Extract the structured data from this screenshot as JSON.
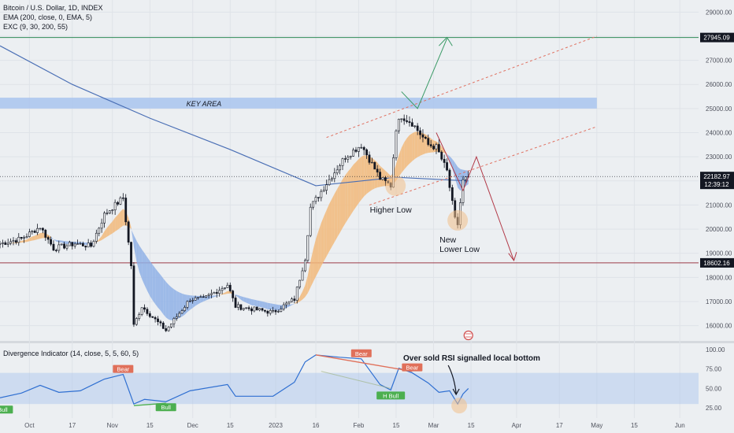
{
  "header": {
    "symbol": "Bitcoin / U.S. Dollar, 1D, INDEX",
    "ema_study": "EMA (200, close, 0, EMA, 5)",
    "exc_study": "EXC (9, 30, 200, 55)"
  },
  "oscillator": {
    "title": "Divergence Indicator (14, close, 5, 5, 60, 5)"
  },
  "colors": {
    "background": "#eceff2",
    "bull_candle": "#ffffff",
    "bear_candle": "#131722",
    "ema200": "#4a6fb5",
    "band_bull": "#f2b97a",
    "band_bear": "#8fb0e6",
    "key_area": "#a9c4ee",
    "resistance_line": "#2e8b57",
    "support_line": "#9b3b4a",
    "rsi_line": "#2f6fd1",
    "bear_label": "#e0705a",
    "bull_label": "#4caf50",
    "annotation_red": "#e07060",
    "annotation_dark": "#b23a48",
    "annotation_green": "#3a9a66",
    "highlight_circle": "#f2c08a"
  },
  "chart_data": [
    {
      "type": "candlestick",
      "title": "Bitcoin / U.S. Dollar, 1D, INDEX",
      "y_axis": {
        "ticks": [
          16000,
          17000,
          18000,
          19000,
          20000,
          21000,
          22000,
          23000,
          24000,
          25000,
          26000,
          27000,
          28000,
          29000
        ],
        "tick_labels": [
          "16000.00",
          "17000.00",
          "18000.00",
          "19000.00",
          "20000.00",
          "21000.00",
          "22000.00",
          "23000.00",
          "24000.00",
          "25000.00",
          "26000.00",
          "27000.00",
          "28000.00",
          "29000.00"
        ],
        "range": [
          15400,
          29500
        ]
      },
      "x_axis": {
        "tick_labels": [
          "Oct",
          "17",
          "Nov",
          "15",
          "Dec",
          "15",
          "2023",
          "16",
          "Feb",
          "15",
          "Mar",
          "15",
          "Apr",
          "17",
          "May",
          "15",
          "Jun"
        ],
        "tick_dates": [
          "2022-10-01",
          "2022-10-17",
          "2022-11-01",
          "2022-11-15",
          "2022-12-01",
          "2022-12-15",
          "2023-01-01",
          "2023-01-16",
          "2023-02-01",
          "2023-02-15",
          "2023-03-01",
          "2023-03-15",
          "2023-04-01",
          "2023-04-17",
          "2023-05-01",
          "2023-05-15",
          "2023-06-01"
        ]
      },
      "anchors": [
        {
          "date": "2022-09-20",
          "price": 19400
        },
        {
          "date": "2022-09-28",
          "price": 19600
        },
        {
          "date": "2022-10-05",
          "price": 20100
        },
        {
          "date": "2022-10-10",
          "price": 19200
        },
        {
          "date": "2022-10-18",
          "price": 19400
        },
        {
          "date": "2022-10-24",
          "price": 19300
        },
        {
          "date": "2022-10-29",
          "price": 20600
        },
        {
          "date": "2022-11-05",
          "price": 21300
        },
        {
          "date": "2022-11-08",
          "price": 18500
        },
        {
          "date": "2022-11-09",
          "price": 16000
        },
        {
          "date": "2022-11-12",
          "price": 16800
        },
        {
          "date": "2022-11-21",
          "price": 15800
        },
        {
          "date": "2022-11-30",
          "price": 17100
        },
        {
          "date": "2022-12-05",
          "price": 17100
        },
        {
          "date": "2022-12-14",
          "price": 17700
        },
        {
          "date": "2022-12-17",
          "price": 16800
        },
        {
          "date": "2022-12-31",
          "price": 16550
        },
        {
          "date": "2023-01-08",
          "price": 17100
        },
        {
          "date": "2023-01-12",
          "price": 18800
        },
        {
          "date": "2023-01-14",
          "price": 20900
        },
        {
          "date": "2023-01-20",
          "price": 21900
        },
        {
          "date": "2023-01-27",
          "price": 23000
        },
        {
          "date": "2023-02-02",
          "price": 23500
        },
        {
          "date": "2023-02-09",
          "price": 22100
        },
        {
          "date": "2023-02-13",
          "price": 21800
        },
        {
          "date": "2023-02-15",
          "price": 24200
        },
        {
          "date": "2023-02-17",
          "price": 24700
        },
        {
          "date": "2023-02-21",
          "price": 24400
        },
        {
          "date": "2023-02-27",
          "price": 23500
        },
        {
          "date": "2023-03-02",
          "price": 23400
        },
        {
          "date": "2023-03-06",
          "price": 22400
        },
        {
          "date": "2023-03-09",
          "price": 20400
        },
        {
          "date": "2023-03-10",
          "price": 20200
        },
        {
          "date": "2023-03-12",
          "price": 22000
        },
        {
          "date": "2023-03-14",
          "price": 22182.97
        }
      ],
      "ema200": [
        {
          "date": "2022-09-20",
          "price": 27600
        },
        {
          "date": "2022-10-17",
          "price": 26000
        },
        {
          "date": "2022-11-15",
          "price": 24600
        },
        {
          "date": "2022-12-15",
          "price": 23300
        },
        {
          "date": "2023-01-16",
          "price": 21800
        },
        {
          "date": "2023-02-15",
          "price": 22150
        },
        {
          "date": "2023-03-14",
          "price": 22000
        }
      ],
      "levels": [
        {
          "price": 27945.09,
          "label": "27945.09",
          "color": "#2e8b57"
        },
        {
          "price": 18602.16,
          "label": "18602.16",
          "color": "#9b3b4a"
        }
      ],
      "current_price": {
        "label": "22182.97",
        "countdown": "12:39:12"
      },
      "key_area": {
        "label": "KEY AREA",
        "price_range": [
          25000,
          25450
        ],
        "date_range": [
          "2022-09-20",
          "2023-05-01"
        ]
      },
      "annotations": [
        {
          "text": "Higher Low",
          "date": "2023-02-13",
          "price": 21800
        },
        {
          "text": "New",
          "date": "2023-03-10",
          "price": 20200
        },
        {
          "text": "Lower Low",
          "date": "2023-03-10",
          "price": 20200
        }
      ]
    },
    {
      "type": "line",
      "title": "Divergence Indicator (14, close, 5, 5, 60, 5)",
      "y_axis": {
        "ticks": [
          25,
          50,
          75,
          100
        ],
        "tick_labels": [
          "25.00",
          "50.00",
          "75.00",
          "100.00"
        ],
        "range": [
          12,
          108
        ],
        "band": [
          30,
          70
        ]
      },
      "series": [
        {
          "values": [
            {
              "date": "2022-09-20",
              "value": 38
            },
            {
              "date": "2022-09-28",
              "value": 44
            },
            {
              "date": "2022-10-05",
              "value": 54
            },
            {
              "date": "2022-10-12",
              "value": 45
            },
            {
              "date": "2022-10-20",
              "value": 47
            },
            {
              "date": "2022-10-29",
              "value": 62
            },
            {
              "date": "2022-11-05",
              "value": 68
            },
            {
              "date": "2022-11-09",
              "value": 30
            },
            {
              "date": "2022-11-13",
              "value": 36
            },
            {
              "date": "2022-11-21",
              "value": 33
            },
            {
              "date": "2022-11-30",
              "value": 47
            },
            {
              "date": "2022-12-14",
              "value": 55
            },
            {
              "date": "2022-12-17",
              "value": 40
            },
            {
              "date": "2022-12-31",
              "value": 40
            },
            {
              "date": "2023-01-08",
              "value": 58
            },
            {
              "date": "2023-01-12",
              "value": 84
            },
            {
              "date": "2023-01-16",
              "value": 93
            },
            {
              "date": "2023-01-25",
              "value": 90
            },
            {
              "date": "2023-02-02",
              "value": 88
            },
            {
              "date": "2023-02-09",
              "value": 55
            },
            {
              "date": "2023-02-13",
              "value": 48
            },
            {
              "date": "2023-02-16",
              "value": 76
            },
            {
              "date": "2023-02-21",
              "value": 70
            },
            {
              "date": "2023-02-27",
              "value": 57
            },
            {
              "date": "2023-03-03",
              "value": 45
            },
            {
              "date": "2023-03-07",
              "value": 47
            },
            {
              "date": "2023-03-10",
              "value": 30
            },
            {
              "date": "2023-03-12",
              "value": 43
            },
            {
              "date": "2023-03-14",
              "value": 50
            }
          ]
        }
      ],
      "labels": [
        {
          "text": "Bull",
          "date": "2022-09-21",
          "value": 30,
          "kind": "bull"
        },
        {
          "text": "Bear",
          "date": "2022-11-05",
          "value": 68,
          "kind": "bear"
        },
        {
          "text": "Bull",
          "date": "2022-11-21",
          "value": 33,
          "kind": "bull"
        },
        {
          "text": "Bear",
          "date": "2023-02-02",
          "value": 88,
          "kind": "bear"
        },
        {
          "text": "H Bull",
          "date": "2023-02-13",
          "value": 48,
          "kind": "bull"
        },
        {
          "text": "Bear",
          "date": "2023-02-21",
          "value": 70,
          "kind": "bear"
        }
      ],
      "annotation": "Over sold RSI signalled local bottom"
    }
  ]
}
